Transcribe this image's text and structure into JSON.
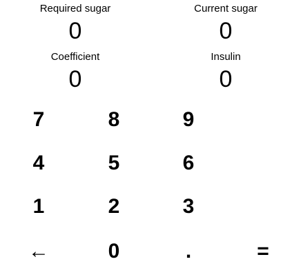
{
  "fields": {
    "required_sugar": {
      "label": "Required sugar",
      "value": "0"
    },
    "current_sugar": {
      "label": "Current sugar",
      "value": "0"
    },
    "coefficient": {
      "label": "Coefficient",
      "value": "0"
    },
    "insulin": {
      "label": "Insulin",
      "value": "0"
    }
  },
  "keypad": {
    "keys": [
      "7",
      "8",
      "9",
      "4",
      "5",
      "6",
      "1",
      "2",
      "3",
      "←",
      "0",
      ".",
      "="
    ]
  }
}
